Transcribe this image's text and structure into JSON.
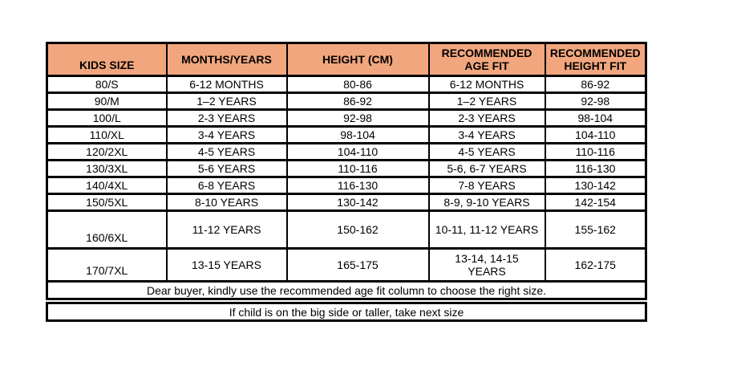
{
  "chart_data": {
    "type": "table",
    "columns": [
      "KIDS SIZE",
      "MONTHS/YEARS",
      "HEIGHT (CM)",
      "RECOMMENDED AGE FIT",
      "RECOMMENDED HEIGHT FIT"
    ],
    "rows": [
      [
        "80/S",
        "6-12 MONTHS",
        "80-86",
        "6-12 MONTHS",
        "86-92"
      ],
      [
        "90/M",
        "1–2 YEARS",
        "86-92",
        "1–2 YEARS",
        "92-98"
      ],
      [
        "100/L",
        "2-3 YEARS",
        "92-98",
        "2-3 YEARS",
        "98-104"
      ],
      [
        "110/XL",
        "3-4 YEARS",
        "98-104",
        "3-4 YEARS",
        "104-110"
      ],
      [
        "120/2XL",
        "4-5 YEARS",
        "104-110",
        "4-5 YEARS",
        "110-116"
      ],
      [
        "130/3XL",
        "5-6 YEARS",
        "110-116",
        "5-6, 6-7 YEARS",
        "116-130"
      ],
      [
        "140/4XL",
        "6-8 YEARS",
        "116-130",
        "7-8 YEARS",
        "130-142"
      ],
      [
        "150/5XL",
        "8-10 YEARS",
        "130-142",
        "8-9, 9-10 YEARS",
        "142-154"
      ],
      [
        "160/6XL",
        "11-12 YEARS",
        "150-162",
        "10-11, 11-12 YEARS",
        "155-162"
      ],
      [
        "170/7XL",
        "13-15 YEARS",
        "165-175",
        "13-14, 14-15 YEARS",
        "162-175"
      ]
    ],
    "notes": [
      "Dear buyer, kindly use the recommended age fit column to choose the right size.",
      "If child is on the big side or taller, take next size"
    ]
  },
  "styles": {
    "header_fill": "#F2A67E",
    "border_color": "#000000",
    "text_color": "#000000",
    "page_background": "#FFFFFF"
  }
}
